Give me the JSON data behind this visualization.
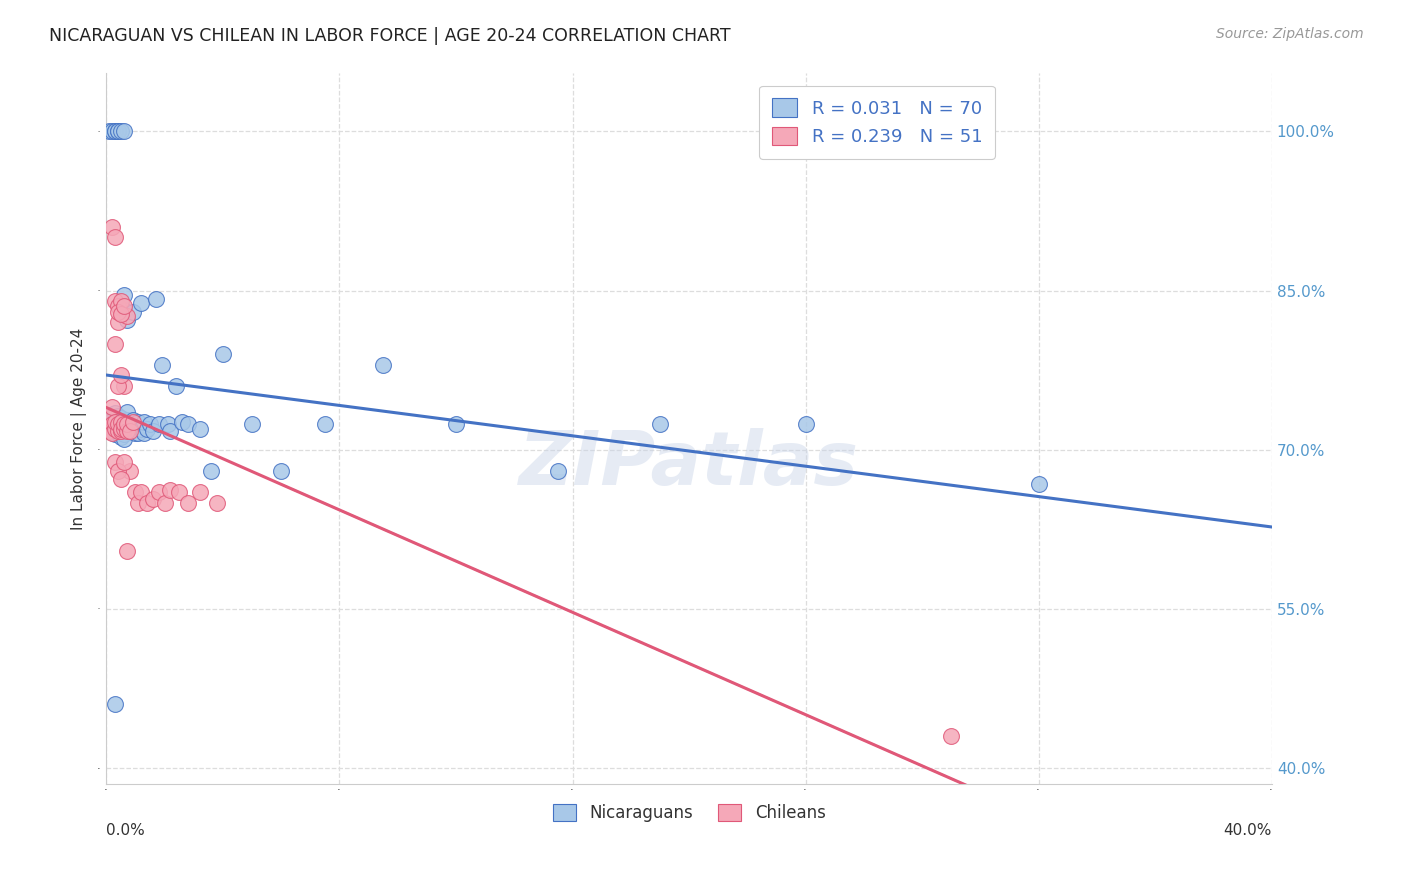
{
  "title": "NICARAGUAN VS CHILEAN IN LABOR FORCE | AGE 20-24 CORRELATION CHART",
  "source": "Source: ZipAtlas.com",
  "ylabel": "In Labor Force | Age 20-24",
  "y_ticks": [
    0.4,
    0.55,
    0.7,
    0.85,
    1.0
  ],
  "y_tick_labels": [
    "40.0%",
    "55.0%",
    "70.0%",
    "85.0%",
    "100.0%"
  ],
  "xmin": 0.0,
  "xmax": 0.4,
  "ymin": 0.385,
  "ymax": 1.055,
  "legend_blue_r": "R = 0.031",
  "legend_blue_n": "N = 70",
  "legend_pink_r": "R = 0.239",
  "legend_pink_n": "N = 51",
  "blue_color": "#a8c8e8",
  "pink_color": "#f5a8b8",
  "blue_line_color": "#4472c4",
  "pink_line_color": "#e05878",
  "blue_edge_color": "#4472c4",
  "pink_edge_color": "#e05878",
  "watermark": "ZIPatlas",
  "background_color": "#ffffff",
  "grid_color": "#dddddd",
  "nic_x": [
    0.001,
    0.002,
    0.002,
    0.002,
    0.003,
    0.003,
    0.003,
    0.003,
    0.004,
    0.004,
    0.004,
    0.004,
    0.005,
    0.005,
    0.005,
    0.005,
    0.005,
    0.006,
    0.006,
    0.006,
    0.006,
    0.006,
    0.007,
    0.007,
    0.007,
    0.008,
    0.008,
    0.009,
    0.009,
    0.01,
    0.01,
    0.01,
    0.011,
    0.011,
    0.012,
    0.012,
    0.013,
    0.013,
    0.014,
    0.015,
    0.016,
    0.017,
    0.018,
    0.019,
    0.021,
    0.022,
    0.024,
    0.026,
    0.028,
    0.032,
    0.036,
    0.04,
    0.05,
    0.06,
    0.075,
    0.095,
    0.12,
    0.155,
    0.19,
    0.24,
    0.001,
    0.002,
    0.003,
    0.003,
    0.004,
    0.004,
    0.005,
    0.006,
    0.32,
    0.003
  ],
  "nic_y": [
    0.72,
    0.725,
    0.72,
    0.73,
    0.735,
    0.718,
    0.722,
    0.715,
    0.728,
    0.732,
    0.716,
    0.724,
    0.73,
    0.718,
    0.712,
    0.726,
    0.72,
    0.715,
    0.724,
    0.71,
    0.832,
    0.846,
    0.728,
    0.736,
    0.822,
    0.718,
    0.724,
    0.728,
    0.83,
    0.72,
    0.724,
    0.716,
    0.726,
    0.716,
    0.838,
    0.72,
    0.716,
    0.726,
    0.72,
    0.724,
    0.718,
    0.842,
    0.724,
    0.78,
    0.724,
    0.718,
    0.76,
    0.726,
    0.724,
    0.72,
    0.68,
    0.79,
    0.724,
    0.68,
    0.724,
    0.78,
    0.724,
    0.68,
    0.724,
    0.724,
    1.0,
    1.0,
    1.0,
    1.0,
    1.0,
    1.0,
    1.0,
    1.0,
    0.668,
    0.46
  ],
  "chi_x": [
    0.001,
    0.001,
    0.002,
    0.002,
    0.002,
    0.003,
    0.003,
    0.003,
    0.003,
    0.004,
    0.004,
    0.004,
    0.004,
    0.005,
    0.005,
    0.005,
    0.005,
    0.006,
    0.006,
    0.006,
    0.007,
    0.007,
    0.007,
    0.008,
    0.008,
    0.009,
    0.01,
    0.011,
    0.012,
    0.014,
    0.016,
    0.018,
    0.02,
    0.022,
    0.025,
    0.028,
    0.032,
    0.038,
    0.002,
    0.003,
    0.004,
    0.005,
    0.006,
    0.003,
    0.004,
    0.005,
    0.006,
    0.007,
    0.29,
    0.004,
    0.005
  ],
  "chi_y": [
    0.718,
    0.73,
    0.724,
    0.74,
    0.716,
    0.8,
    0.72,
    0.726,
    0.84,
    0.82,
    0.718,
    0.724,
    0.835,
    0.726,
    0.84,
    0.718,
    0.72,
    0.76,
    0.72,
    0.724,
    0.718,
    0.724,
    0.826,
    0.718,
    0.68,
    0.726,
    0.66,
    0.65,
    0.66,
    0.65,
    0.654,
    0.66,
    0.65,
    0.662,
    0.66,
    0.65,
    0.66,
    0.65,
    0.91,
    0.9,
    0.83,
    0.828,
    0.835,
    0.688,
    0.68,
    0.672,
    0.688,
    0.605,
    0.43,
    0.76,
    0.77
  ]
}
